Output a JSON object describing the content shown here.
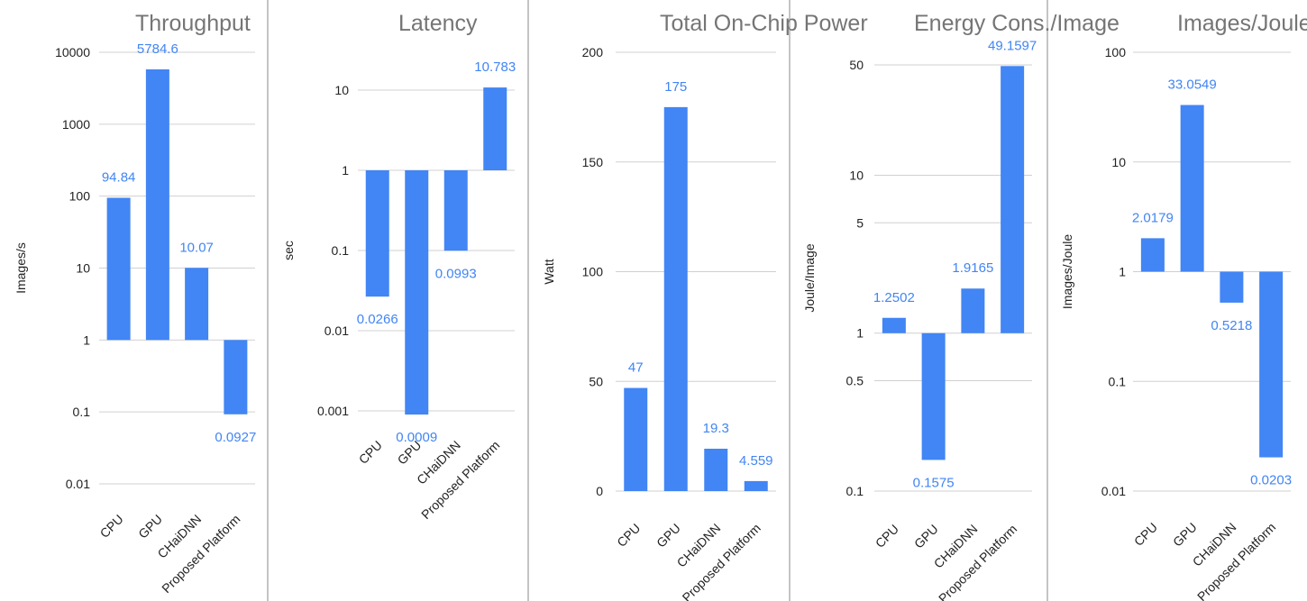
{
  "colors": {
    "bar": "#4285f4",
    "label": "#4285f4",
    "grid": "#d0d0d0",
    "title": "#757575"
  },
  "chart_data": [
    {
      "type": "bar",
      "title": "Throughput",
      "ylabel": "Images/s",
      "scale": "log",
      "baseline": 1,
      "categories": [
        "CPU",
        "GPU",
        "CHaiDNN",
        "Proposed Platform"
      ],
      "values": [
        94.84,
        5784.6,
        10.07,
        0.0927
      ],
      "value_labels": [
        "94.84",
        "5784.6",
        "10.07",
        "0.0927"
      ],
      "ylim": [
        0.01,
        10000
      ],
      "yticks": [
        0.01,
        0.1,
        1,
        10,
        100,
        1000,
        10000
      ],
      "ytick_labels": [
        "0.01",
        "0.1",
        "1",
        "10",
        "100",
        "1000",
        "10000"
      ],
      "grid": true
    },
    {
      "type": "bar",
      "title": "Latency",
      "ylabel": "sec",
      "scale": "log",
      "baseline": 1,
      "categories": [
        "CPU",
        "GPU",
        "CHaiDNN",
        "Proposed Platform"
      ],
      "values": [
        0.0266,
        0.0009,
        0.0993,
        10.783
      ],
      "value_labels": [
        "0.0266",
        "0.0009",
        "0.0993",
        "10.783"
      ],
      "ylim": [
        0.0003,
        30
      ],
      "yticks": [
        0.001,
        0.01,
        0.1,
        1,
        10
      ],
      "ytick_labels": [
        "0.001",
        "0.01",
        "0.1",
        "1",
        "10"
      ],
      "grid": true
    },
    {
      "type": "bar",
      "title": "Total On-Chip Power",
      "ylabel": "Watt",
      "scale": "linear",
      "baseline": 0,
      "categories": [
        "CPU",
        "GPU",
        "CHaiDNN",
        "Proposed Platform"
      ],
      "values": [
        47,
        175,
        19.3,
        4.559
      ],
      "value_labels": [
        "47",
        "175",
        "19.3",
        "4.559"
      ],
      "ylim": [
        0,
        200
      ],
      "yticks": [
        0,
        50,
        100,
        150,
        200
      ],
      "ytick_labels": [
        "0",
        "50",
        "100",
        "150",
        "200"
      ],
      "grid": true
    },
    {
      "type": "bar",
      "title": "Energy Cons./Image",
      "ylabel": "Joule/Image",
      "scale": "log",
      "baseline": 1,
      "categories": [
        "CPU",
        "GPU",
        "CHaiDNN",
        "Proposed Platform"
      ],
      "values": [
        1.2502,
        0.1575,
        1.9165,
        49.1597
      ],
      "value_labels": [
        "1.2502",
        "0.1575",
        "1.9165",
        "49.1597"
      ],
      "ylim": [
        0.1,
        80
      ],
      "yticks": [
        0.1,
        0.5,
        1,
        5,
        10,
        50
      ],
      "ytick_labels": [
        "0.1",
        "0.5",
        "1",
        "5",
        "10",
        "50"
      ],
      "grid": true
    },
    {
      "type": "bar",
      "title": "Images/Joule",
      "ylabel": "Images/Joule",
      "scale": "log",
      "baseline": 1,
      "categories": [
        "CPU",
        "GPU",
        "CHaiDNN",
        "Proposed Platform"
      ],
      "values": [
        2.0179,
        33.0549,
        0.5218,
        0.0203
      ],
      "value_labels": [
        "2.0179",
        "33.0549",
        "0.5218",
        "0.0203"
      ],
      "ylim": [
        0.01,
        100
      ],
      "yticks": [
        0.01,
        0.1,
        1,
        10,
        100
      ],
      "ytick_labels": [
        "0.01",
        "0.1",
        "1",
        "10",
        "100"
      ],
      "grid": true
    }
  ]
}
